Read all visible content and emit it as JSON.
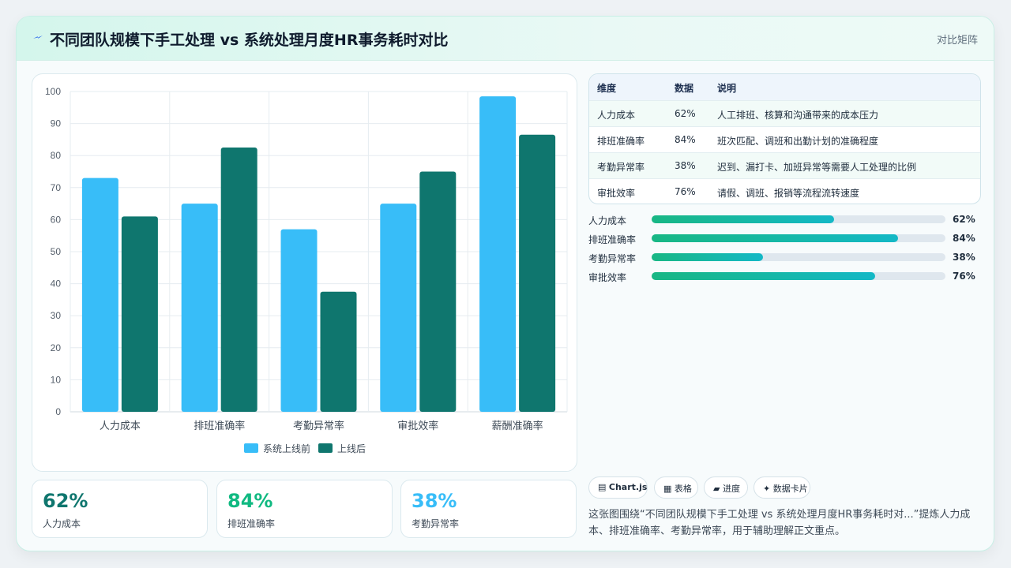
{
  "header": {
    "title": "不同团队规模下手工处理 vs 系统处理月度HR事务耗时对比",
    "mode": "对比矩阵"
  },
  "chart_data": {
    "type": "bar",
    "categories": [
      "人力成本",
      "排班准确率",
      "考勤异常率",
      "审批效率",
      "薪酬准确率"
    ],
    "series": [
      {
        "name": "系统上线前",
        "values": [
          73,
          65,
          57,
          65,
          98.5
        ],
        "color": "#38bdf8"
      },
      {
        "name": "上线后",
        "values": [
          61,
          82.5,
          37.5,
          75,
          86.5
        ],
        "color": "#0f766e"
      }
    ],
    "ylim": [
      0,
      100
    ],
    "yticks": [
      0,
      10,
      20,
      30,
      40,
      50,
      60,
      70,
      80,
      90,
      100
    ],
    "legend": "bottom"
  },
  "kpis": [
    {
      "value": "62%",
      "label": "人力成本",
      "color": "#0f766e"
    },
    {
      "value": "84%",
      "label": "排班准确率",
      "color": "#10b981"
    },
    {
      "value": "38%",
      "label": "考勤异常率",
      "color": "#38bdf8"
    }
  ],
  "table": {
    "headers": [
      "维度",
      "数据",
      "说明"
    ],
    "rows": [
      [
        "人力成本",
        "62%",
        "人工排班、核算和沟通带来的成本压力"
      ],
      [
        "排班准确率",
        "84%",
        "班次匹配、调班和出勤计划的准确程度"
      ],
      [
        "考勤异常率",
        "38%",
        "迟到、漏打卡、加班异常等需要人工处理的比例"
      ],
      [
        "审批效率",
        "76%",
        "请假、调班、报销等流程流转速度"
      ]
    ]
  },
  "progress": [
    {
      "label": "人力成本",
      "value": 62,
      "text": "62%"
    },
    {
      "label": "排班准确率",
      "value": 84,
      "text": "84%"
    },
    {
      "label": "考勤异常率",
      "value": 38,
      "text": "38%"
    },
    {
      "label": "审批效率",
      "value": 76,
      "text": "76%"
    }
  ],
  "chips": [
    {
      "icon": "▤",
      "label": "Chart.js",
      "bold": true
    },
    {
      "icon": "▦",
      "label": "表格"
    },
    {
      "icon": "▰",
      "label": "进度"
    },
    {
      "icon": "✦",
      "label": "数据卡片"
    }
  ],
  "note": "这张图围绕“不同团队规模下手工处理 vs 系统处理月度HR事务耗时对...”提炼人力成本、排班准确率、考勤异常率，用于辅助理解正文重点。",
  "colors": {
    "accent": "#0f766e",
    "accent2": "#38bdf8",
    "green": "#10b981"
  }
}
